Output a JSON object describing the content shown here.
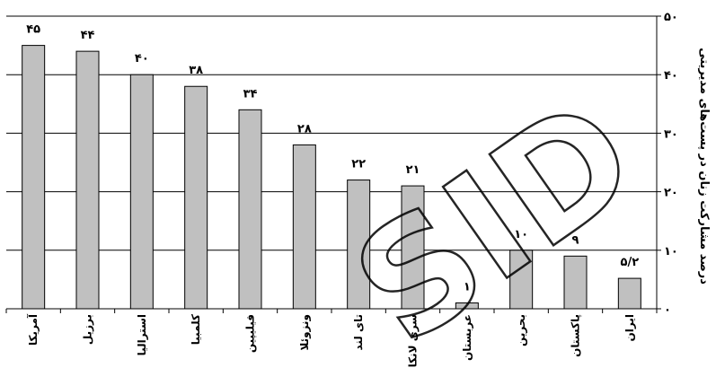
{
  "chart_data": {
    "type": "bar",
    "categories": [
      "آمریکا",
      "برزیل",
      "استرالیا",
      "کلمبیا",
      "فیلیپین",
      "ونزوئلا",
      "تای لند",
      "سری لانکا",
      "عربستان",
      "بحرین",
      "پاکستان",
      "ایران"
    ],
    "values": [
      45,
      44,
      40,
      38,
      34,
      28,
      22,
      21,
      1,
      10,
      9,
      5.2
    ],
    "data_labels": [
      "۴۵",
      "۴۴",
      "۴۰",
      "۳۸",
      "۳۴",
      "۲۸",
      "۲۲",
      "۲۱",
      "۱",
      "۱۰",
      "۹",
      "۵/۲"
    ],
    "ylabel": "درصد مشارکت زنان در پست‌های مدیریتی",
    "ylim": [
      0,
      50
    ],
    "yticks": [
      0,
      10,
      20,
      30,
      40,
      50
    ],
    "ytick_labels": [
      "۰",
      "۱۰",
      "۲۰",
      "۳۰",
      "۴۰",
      "۵۰"
    ],
    "y_axis_side": "right",
    "grid": true,
    "bar_color": "#c0c0c0"
  },
  "watermark": "SID"
}
